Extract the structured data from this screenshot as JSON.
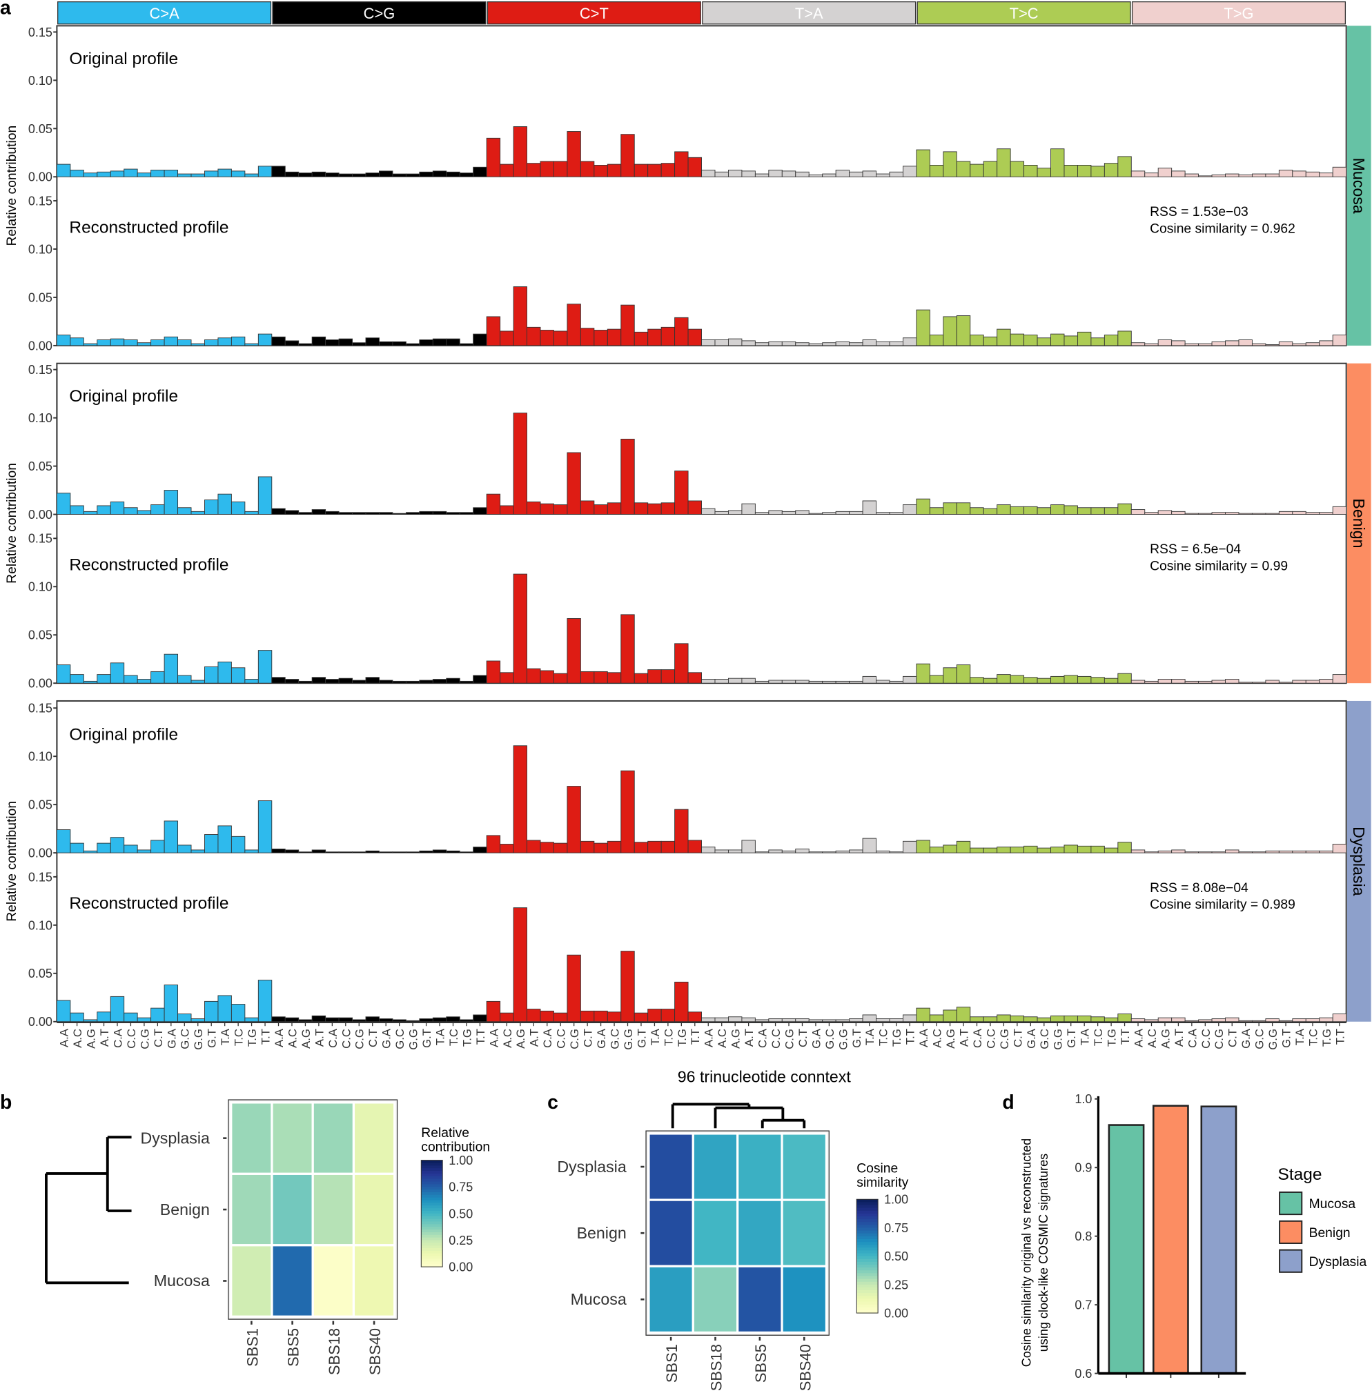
{
  "panel_letters": {
    "a": "a",
    "b": "b",
    "c": "c",
    "d": "d"
  },
  "chart_data": [
    {
      "type": "bar",
      "panel": "a",
      "ylabel": "Relative contribution",
      "xlabel": "96 trinucleotide conntext",
      "ylim": [
        0,
        0.15
      ],
      "yticks": [
        "0.00",
        "0.05",
        "0.10",
        "0.15"
      ],
      "mutation_types": [
        "C>A",
        "C>G",
        "C>T",
        "T>A",
        "T>C",
        "T>G"
      ],
      "colors": {
        "C>A": "#2EBAED",
        "C>G": "#000000",
        "C>T": "#DE1C14",
        "T>A": "#D4D2D2",
        "T>C": "#ADCC54",
        "T>G": "#F0D0CE"
      },
      "contexts": [
        "A.A",
        "A.C",
        "A.G",
        "A.T",
        "C.A",
        "C.C",
        "C.G",
        "C.T",
        "G.A",
        "G.C",
        "G.G",
        "G.T",
        "T.A",
        "T.C",
        "T.G",
        "T.T"
      ],
      "groups": [
        {
          "stage": "Mucosa",
          "color": "#66C2A5",
          "rss_text": "RSS = 1.53e−03",
          "cosine_text": "Cosine similarity = 0.962",
          "profiles": [
            {
              "label": "Original profile",
              "values": [
                0.013,
                0.007,
                0.004,
                0.005,
                0.006,
                0.008,
                0.004,
                0.007,
                0.007,
                0.003,
                0.003,
                0.006,
                0.008,
                0.006,
                0.003,
                0.011,
                0.011,
                0.005,
                0.004,
                0.005,
                0.004,
                0.003,
                0.003,
                0.004,
                0.006,
                0.003,
                0.003,
                0.005,
                0.006,
                0.005,
                0.004,
                0.01,
                0.04,
                0.013,
                0.052,
                0.014,
                0.016,
                0.016,
                0.047,
                0.016,
                0.012,
                0.013,
                0.044,
                0.013,
                0.013,
                0.014,
                0.026,
                0.02,
                0.007,
                0.005,
                0.007,
                0.006,
                0.003,
                0.007,
                0.006,
                0.005,
                0.002,
                0.003,
                0.007,
                0.005,
                0.006,
                0.003,
                0.005,
                0.011,
                0.028,
                0.012,
                0.026,
                0.016,
                0.013,
                0.016,
                0.029,
                0.016,
                0.012,
                0.009,
                0.029,
                0.012,
                0.012,
                0.011,
                0.014,
                0.021,
                0.006,
                0.004,
                0.009,
                0.006,
                0.003,
                0.001,
                0.002,
                0.003,
                0.002,
                0.003,
                0.003,
                0.007,
                0.006,
                0.005,
                0.004,
                0.01
              ]
            },
            {
              "label": "Reconstructed profile",
              "values": [
                0.011,
                0.008,
                0.002,
                0.006,
                0.007,
                0.006,
                0.003,
                0.006,
                0.009,
                0.006,
                0.002,
                0.006,
                0.008,
                0.009,
                0.002,
                0.012,
                0.009,
                0.005,
                0.002,
                0.009,
                0.006,
                0.007,
                0.003,
                0.008,
                0.004,
                0.004,
                0.002,
                0.006,
                0.007,
                0.007,
                0.002,
                0.012,
                0.03,
                0.015,
                0.061,
                0.019,
                0.016,
                0.015,
                0.043,
                0.018,
                0.016,
                0.017,
                0.042,
                0.014,
                0.017,
                0.019,
                0.029,
                0.017,
                0.006,
                0.006,
                0.007,
                0.005,
                0.003,
                0.004,
                0.004,
                0.003,
                0.002,
                0.003,
                0.004,
                0.003,
                0.006,
                0.004,
                0.004,
                0.008,
                0.037,
                0.011,
                0.03,
                0.031,
                0.011,
                0.009,
                0.017,
                0.012,
                0.011,
                0.008,
                0.012,
                0.01,
                0.014,
                0.008,
                0.011,
                0.015,
                0.003,
                0.002,
                0.006,
                0.005,
                0.002,
                0.002,
                0.004,
                0.005,
                0.006,
                0.002,
                0.001,
                0.004,
                0.002,
                0.003,
                0.005,
                0.011
              ]
            }
          ]
        },
        {
          "stage": "Benign",
          "color": "#FC8D62",
          "rss_text": "RSS = 6.5e−04",
          "cosine_text": "Cosine similarity = 0.99",
          "profiles": [
            {
              "label": "Original profile",
              "values": [
                0.022,
                0.009,
                0.003,
                0.009,
                0.013,
                0.007,
                0.004,
                0.01,
                0.025,
                0.007,
                0.003,
                0.015,
                0.021,
                0.013,
                0.003,
                0.039,
                0.006,
                0.004,
                0.002,
                0.005,
                0.003,
                0.002,
                0.002,
                0.002,
                0.002,
                0.001,
                0.002,
                0.003,
                0.003,
                0.002,
                0.002,
                0.007,
                0.021,
                0.009,
                0.105,
                0.013,
                0.011,
                0.01,
                0.064,
                0.014,
                0.01,
                0.012,
                0.078,
                0.012,
                0.011,
                0.012,
                0.045,
                0.014,
                0.006,
                0.003,
                0.004,
                0.011,
                0.002,
                0.004,
                0.003,
                0.004,
                0.001,
                0.002,
                0.003,
                0.003,
                0.014,
                0.002,
                0.002,
                0.01,
                0.016,
                0.007,
                0.012,
                0.012,
                0.007,
                0.006,
                0.01,
                0.008,
                0.008,
                0.007,
                0.01,
                0.009,
                0.007,
                0.007,
                0.007,
                0.011,
                0.005,
                0.002,
                0.004,
                0.003,
                0.001,
                0.001,
                0.002,
                0.002,
                0.001,
                0.001,
                0.001,
                0.003,
                0.003,
                0.002,
                0.002,
                0.008
              ]
            },
            {
              "label": "Reconstructed profile",
              "values": [
                0.019,
                0.009,
                0.002,
                0.009,
                0.021,
                0.008,
                0.004,
                0.012,
                0.03,
                0.008,
                0.003,
                0.017,
                0.022,
                0.016,
                0.004,
                0.034,
                0.006,
                0.004,
                0.002,
                0.006,
                0.004,
                0.005,
                0.003,
                0.006,
                0.003,
                0.002,
                0.002,
                0.003,
                0.004,
                0.005,
                0.002,
                0.008,
                0.023,
                0.011,
                0.113,
                0.015,
                0.013,
                0.01,
                0.067,
                0.012,
                0.012,
                0.011,
                0.071,
                0.01,
                0.014,
                0.014,
                0.041,
                0.011,
                0.004,
                0.004,
                0.005,
                0.005,
                0.002,
                0.003,
                0.003,
                0.003,
                0.002,
                0.002,
                0.002,
                0.002,
                0.007,
                0.003,
                0.002,
                0.007,
                0.02,
                0.008,
                0.016,
                0.019,
                0.006,
                0.005,
                0.009,
                0.008,
                0.006,
                0.005,
                0.007,
                0.008,
                0.007,
                0.006,
                0.005,
                0.01,
                0.003,
                0.002,
                0.004,
                0.004,
                0.002,
                0.002,
                0.003,
                0.004,
                0.001,
                0.001,
                0.003,
                0.001,
                0.003,
                0.003,
                0.004,
                0.009
              ]
            }
          ]
        },
        {
          "stage": "Dysplasia",
          "color": "#8DA0CB",
          "rss_text": "RSS = 8.08e−04",
          "cosine_text": "Cosine similarity = 0.989",
          "profiles": [
            {
              "label": "Original profile",
              "values": [
                0.024,
                0.01,
                0.002,
                0.01,
                0.016,
                0.008,
                0.003,
                0.013,
                0.033,
                0.008,
                0.003,
                0.019,
                0.028,
                0.017,
                0.003,
                0.054,
                0.004,
                0.003,
                0.001,
                0.003,
                0.001,
                0.001,
                0.001,
                0.002,
                0.001,
                0.001,
                0.001,
                0.002,
                0.003,
                0.002,
                0.001,
                0.006,
                0.018,
                0.009,
                0.111,
                0.013,
                0.011,
                0.01,
                0.069,
                0.012,
                0.01,
                0.012,
                0.085,
                0.011,
                0.012,
                0.012,
                0.045,
                0.013,
                0.006,
                0.003,
                0.003,
                0.013,
                0.001,
                0.003,
                0.002,
                0.004,
                0.001,
                0.001,
                0.002,
                0.003,
                0.015,
                0.002,
                0.001,
                0.012,
                0.013,
                0.006,
                0.008,
                0.012,
                0.005,
                0.005,
                0.006,
                0.006,
                0.007,
                0.005,
                0.006,
                0.008,
                0.007,
                0.007,
                0.005,
                0.011,
                0.003,
                0.001,
                0.002,
                0.003,
                0.001,
                0.001,
                0.001,
                0.003,
                0.001,
                0.001,
                0.002,
                0.002,
                0.002,
                0.002,
                0.002,
                0.009
              ]
            },
            {
              "label": "Reconstructed profile",
              "values": [
                0.022,
                0.009,
                0.002,
                0.01,
                0.026,
                0.009,
                0.004,
                0.014,
                0.038,
                0.008,
                0.003,
                0.021,
                0.027,
                0.018,
                0.004,
                0.043,
                0.005,
                0.004,
                0.002,
                0.006,
                0.004,
                0.004,
                0.002,
                0.005,
                0.003,
                0.002,
                0.001,
                0.003,
                0.004,
                0.005,
                0.002,
                0.007,
                0.021,
                0.009,
                0.118,
                0.013,
                0.011,
                0.009,
                0.069,
                0.011,
                0.011,
                0.01,
                0.073,
                0.009,
                0.013,
                0.013,
                0.041,
                0.01,
                0.004,
                0.004,
                0.005,
                0.004,
                0.002,
                0.003,
                0.003,
                0.003,
                0.002,
                0.002,
                0.002,
                0.003,
                0.007,
                0.003,
                0.003,
                0.007,
                0.014,
                0.007,
                0.012,
                0.015,
                0.005,
                0.005,
                0.007,
                0.006,
                0.005,
                0.004,
                0.006,
                0.006,
                0.006,
                0.005,
                0.004,
                0.008,
                0.003,
                0.002,
                0.004,
                0.004,
                0.001,
                0.002,
                0.003,
                0.004,
                0.001,
                0.001,
                0.003,
                0.001,
                0.003,
                0.003,
                0.004,
                0.008
              ]
            }
          ]
        }
      ]
    },
    {
      "type": "heatmap",
      "panel": "b",
      "rows": [
        "Dysplasia",
        "Benign",
        "Mucosa"
      ],
      "columns": [
        "SBS1",
        "SBS5",
        "SBS18",
        "SBS40"
      ],
      "values": [
        [
          0.33,
          0.3,
          0.33,
          0.15
        ],
        [
          0.32,
          0.4,
          0.28,
          0.14
        ],
        [
          0.22,
          0.72,
          0.02,
          0.12
        ]
      ],
      "legend_title": [
        "Relative",
        "contribution"
      ],
      "legend_ticks": [
        "1.00",
        "0.75",
        "0.50",
        "0.25",
        "0.00"
      ],
      "range": [
        0,
        1
      ],
      "row_dendrogram": true,
      "palette": "YlGnBu"
    },
    {
      "type": "heatmap",
      "panel": "c",
      "rows": [
        "Dysplasia",
        "Benign",
        "Mucosa"
      ],
      "columns": [
        "SBS1",
        "SBS18",
        "SBS5",
        "SBS40"
      ],
      "values": [
        [
          0.8,
          0.56,
          0.52,
          0.48
        ],
        [
          0.8,
          0.5,
          0.55,
          0.47
        ],
        [
          0.58,
          0.36,
          0.78,
          0.62
        ]
      ],
      "legend_title": [
        "Cosine",
        "similarity"
      ],
      "legend_ticks": [
        "1.00",
        "0.75",
        "0.50",
        "0.25",
        "0.00"
      ],
      "range": [
        0,
        1
      ],
      "column_dendrogram": true,
      "palette": "YlGnBu"
    },
    {
      "type": "bar",
      "panel": "d",
      "ylabel": [
        "Cosine similarity original vs  reconstructed",
        "using clock-like COSMIC signatures"
      ],
      "categories": [
        "Mucosa",
        "Benign",
        "Dysplasia"
      ],
      "values": [
        0.962,
        0.99,
        0.989
      ],
      "colors": [
        "#66C2A5",
        "#FC8D62",
        "#8DA0CB"
      ],
      "ylim": [
        0.6,
        1.0
      ],
      "yticks": [
        "0.6",
        "0.7",
        "0.8",
        "0.9",
        "1.0"
      ],
      "legend_title": "Stage",
      "legend_placement": "right"
    }
  ]
}
